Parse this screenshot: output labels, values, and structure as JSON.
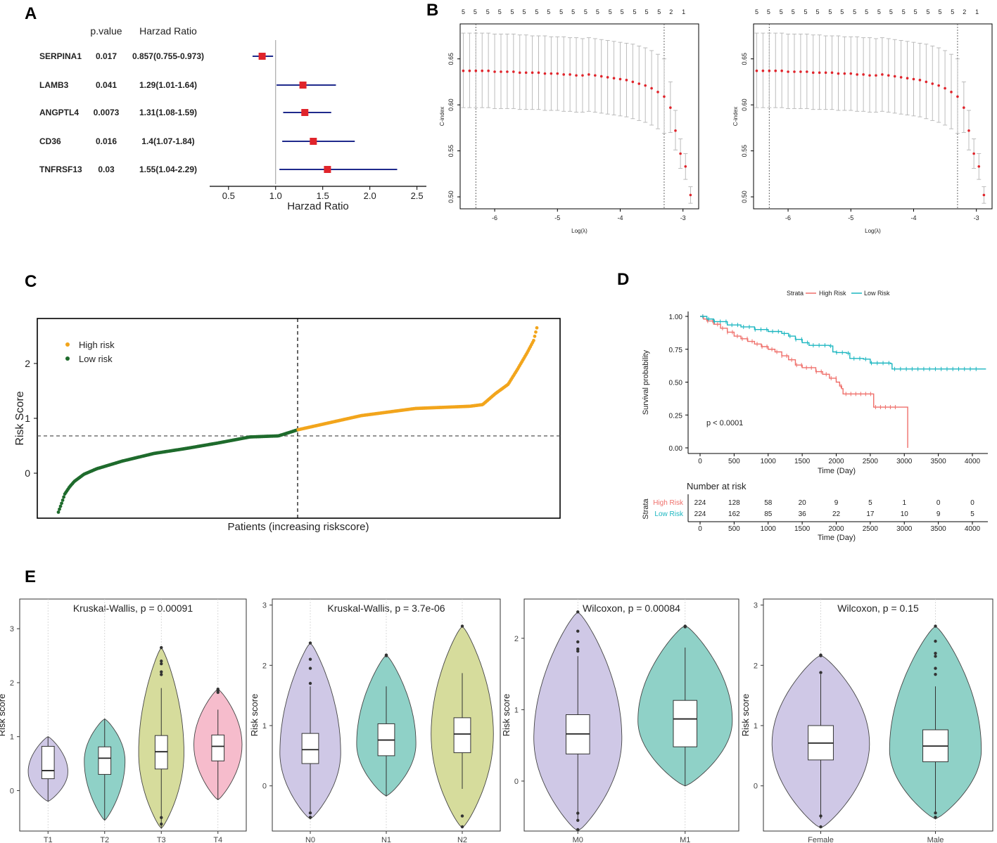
{
  "panel_labels": [
    "A",
    "B",
    "C",
    "D",
    "E"
  ],
  "colors": {
    "forest_line": "#1f2a8c",
    "forest_point": "#e0242b",
    "cindex_point": "#e0242b",
    "cindex_bar": "#b5b5b5",
    "high": "#f2a51c",
    "low": "#1e6b2c",
    "km_high": "#ef6f6a",
    "km_low": "#1bb6c0",
    "violin": [
      "#cfc8e6",
      "#8fd1c7",
      "#d6dc9c",
      "#f6bccc"
    ]
  },
  "chart_data": [
    {
      "id": "A",
      "type": "forest",
      "headers": {
        "pvalue": "p.value",
        "hr": "Harzad Ratio"
      },
      "rows": [
        {
          "gene": "SERPINA1",
          "pvalue": "0.017",
          "hr_text": "0.857(0.755-0.973)",
          "hr": 0.857,
          "lo": 0.755,
          "hi": 0.973
        },
        {
          "gene": "LAMB3",
          "pvalue": "0.041",
          "hr_text": "1.29(1.01-1.64)",
          "hr": 1.29,
          "lo": 1.01,
          "hi": 1.64
        },
        {
          "gene": "ANGPTL4",
          "pvalue": "0.0073",
          "hr_text": "1.31(1.08-1.59)",
          "hr": 1.31,
          "lo": 1.08,
          "hi": 1.59
        },
        {
          "gene": "CD36",
          "pvalue": "0.016",
          "hr_text": "1.4(1.07-1.84)",
          "hr": 1.4,
          "lo": 1.07,
          "hi": 1.84
        },
        {
          "gene": "TNFRSF13",
          "pvalue": "0.03",
          "hr_text": "1.55(1.04-2.29)",
          "hr": 1.55,
          "lo": 1.04,
          "hi": 2.29
        }
      ],
      "xlim": [
        0.3,
        2.6
      ],
      "ticks": [
        0.5,
        1.0,
        1.5,
        2.0,
        2.5
      ],
      "tick_labels": [
        "0.5",
        "1.0",
        "1.5",
        "2.0",
        "2.5"
      ],
      "ref": 1.0,
      "xlabel": "Harzad Ratio"
    },
    {
      "id": "B",
      "type": "errorbar-cindex",
      "xlabel": "Log(λ)",
      "ylabel": "C-index",
      "xlim": [
        -6.55,
        -2.75
      ],
      "ylim": [
        0.487,
        0.688
      ],
      "xticks": [
        -6,
        -5,
        -4,
        -3
      ],
      "xtick_labels": [
        "-6",
        "-5",
        "-4",
        "-3"
      ],
      "yticks": [
        0.5,
        0.55,
        0.6,
        0.65
      ],
      "ytick_labels": [
        "0.50",
        "0.55",
        "0.60",
        "0.65"
      ],
      "vlines": [
        -6.3,
        -3.3
      ],
      "top_labels": [
        "5",
        "5",
        "5",
        "5",
        "5",
        "5",
        "5",
        "5",
        "5",
        "5",
        "5",
        "5",
        "5",
        "5",
        "5",
        "5",
        "5",
        "2",
        "1"
      ],
      "top_label_x": [
        -6.5,
        -6.31,
        -6.11,
        -5.92,
        -5.72,
        -5.53,
        -5.33,
        -5.14,
        -4.94,
        -4.75,
        -4.55,
        -4.36,
        -4.16,
        -3.97,
        -3.77,
        -3.58,
        -3.38,
        -3.19,
        -2.99
      ],
      "points": [
        {
          "x": -6.5,
          "y": 0.637,
          "lo": 0.597,
          "hi": 0.678
        },
        {
          "x": -6.4,
          "y": 0.637,
          "lo": 0.597,
          "hi": 0.678
        },
        {
          "x": -6.3,
          "y": 0.637,
          "lo": 0.597,
          "hi": 0.678
        },
        {
          "x": -6.2,
          "y": 0.637,
          "lo": 0.597,
          "hi": 0.678
        },
        {
          "x": -6.1,
          "y": 0.637,
          "lo": 0.597,
          "hi": 0.678
        },
        {
          "x": -6.0,
          "y": 0.636,
          "lo": 0.596,
          "hi": 0.677
        },
        {
          "x": -5.9,
          "y": 0.636,
          "lo": 0.596,
          "hi": 0.677
        },
        {
          "x": -5.8,
          "y": 0.636,
          "lo": 0.596,
          "hi": 0.677
        },
        {
          "x": -5.7,
          "y": 0.636,
          "lo": 0.596,
          "hi": 0.677
        },
        {
          "x": -5.6,
          "y": 0.635,
          "lo": 0.595,
          "hi": 0.676
        },
        {
          "x": -5.5,
          "y": 0.635,
          "lo": 0.595,
          "hi": 0.676
        },
        {
          "x": -5.4,
          "y": 0.635,
          "lo": 0.595,
          "hi": 0.675
        },
        {
          "x": -5.3,
          "y": 0.635,
          "lo": 0.595,
          "hi": 0.675
        },
        {
          "x": -5.2,
          "y": 0.634,
          "lo": 0.594,
          "hi": 0.675
        },
        {
          "x": -5.1,
          "y": 0.634,
          "lo": 0.594,
          "hi": 0.674
        },
        {
          "x": -5.0,
          "y": 0.634,
          "lo": 0.594,
          "hi": 0.674
        },
        {
          "x": -4.9,
          "y": 0.633,
          "lo": 0.593,
          "hi": 0.674
        },
        {
          "x": -4.8,
          "y": 0.633,
          "lo": 0.593,
          "hi": 0.673
        },
        {
          "x": -4.7,
          "y": 0.632,
          "lo": 0.592,
          "hi": 0.673
        },
        {
          "x": -4.6,
          "y": 0.632,
          "lo": 0.592,
          "hi": 0.672
        },
        {
          "x": -4.5,
          "y": 0.633,
          "lo": 0.593,
          "hi": 0.673
        },
        {
          "x": -4.4,
          "y": 0.632,
          "lo": 0.592,
          "hi": 0.672
        },
        {
          "x": -4.3,
          "y": 0.631,
          "lo": 0.591,
          "hi": 0.671
        },
        {
          "x": -4.2,
          "y": 0.63,
          "lo": 0.59,
          "hi": 0.67
        },
        {
          "x": -4.1,
          "y": 0.629,
          "lo": 0.589,
          "hi": 0.669
        },
        {
          "x": -4.0,
          "y": 0.628,
          "lo": 0.588,
          "hi": 0.668
        },
        {
          "x": -3.9,
          "y": 0.627,
          "lo": 0.587,
          "hi": 0.667
        },
        {
          "x": -3.8,
          "y": 0.625,
          "lo": 0.585,
          "hi": 0.666
        },
        {
          "x": -3.7,
          "y": 0.623,
          "lo": 0.583,
          "hi": 0.664
        },
        {
          "x": -3.6,
          "y": 0.621,
          "lo": 0.581,
          "hi": 0.662
        },
        {
          "x": -3.5,
          "y": 0.618,
          "lo": 0.578,
          "hi": 0.659
        },
        {
          "x": -3.4,
          "y": 0.614,
          "lo": 0.574,
          "hi": 0.655
        },
        {
          "x": -3.3,
          "y": 0.609,
          "lo": 0.569,
          "hi": 0.65
        },
        {
          "x": -3.2,
          "y": 0.597,
          "lo": 0.57,
          "hi": 0.625
        },
        {
          "x": -3.12,
          "y": 0.572,
          "lo": 0.551,
          "hi": 0.594
        },
        {
          "x": -3.04,
          "y": 0.547,
          "lo": 0.531,
          "hi": 0.563
        },
        {
          "x": -2.96,
          "y": 0.533,
          "lo": 0.519,
          "hi": 0.547
        },
        {
          "x": -2.88,
          "y": 0.502,
          "lo": 0.493,
          "hi": 0.511
        }
      ]
    },
    {
      "id": "C",
      "type": "scatter",
      "xlabel": "Patients (increasing riskscore)",
      "ylabel": "Risk Score",
      "yticks": [
        0,
        1,
        2
      ],
      "ytick_labels": [
        "0",
        "1",
        "2"
      ],
      "ylim": [
        -0.82,
        2.82
      ],
      "cutoff": 0.68,
      "n": 448,
      "split_index": 224,
      "legend": [
        "High risk",
        "Low risk"
      ],
      "quantiles": [
        {
          "q": 0.0,
          "v": -0.71
        },
        {
          "q": 0.01,
          "v": -0.55
        },
        {
          "q": 0.02,
          "v": -0.38
        },
        {
          "q": 0.035,
          "v": -0.25
        },
        {
          "q": 0.05,
          "v": -0.15
        },
        {
          "q": 0.08,
          "v": -0.02
        },
        {
          "q": 0.12,
          "v": 0.08
        },
        {
          "q": 0.2,
          "v": 0.22
        },
        {
          "q": 0.3,
          "v": 0.36
        },
        {
          "q": 0.4,
          "v": 0.45
        },
        {
          "q": 0.5,
          "v": 0.55
        },
        {
          "q": 0.6,
          "v": 0.66
        },
        {
          "q": 0.69,
          "v": 0.68
        },
        {
          "q": 0.75,
          "v": 0.79
        },
        {
          "q": 0.85,
          "v": 0.92
        },
        {
          "q": 0.95,
          "v": 1.05
        },
        {
          "q": 1.12,
          "v": 1.18
        },
        {
          "q": 1.29,
          "v": 1.22
        },
        {
          "q": 1.33,
          "v": 1.25
        },
        {
          "q": 1.37,
          "v": 1.45
        },
        {
          "q": 1.41,
          "v": 1.62
        },
        {
          "q": 1.44,
          "v": 1.9
        },
        {
          "q": 1.47,
          "v": 2.2
        },
        {
          "q": 1.49,
          "v": 2.42
        },
        {
          "q": 1.5,
          "v": 2.65
        }
      ]
    },
    {
      "id": "D",
      "type": "km",
      "legend_title": "Strata",
      "legend": [
        "High Risk",
        "Low Risk"
      ],
      "xlabel": "Time (Day)",
      "ylabel": "Survival probability",
      "xlim": [
        -150,
        4200
      ],
      "ylim": [
        -0.05,
        1.05
      ],
      "xticks": [
        0,
        500,
        1000,
        1500,
        2000,
        2500,
        3000,
        3500,
        4000
      ],
      "xtick_labels": [
        "0",
        "500",
        "1000",
        "1500",
        "2000",
        "2500",
        "3000",
        "3500",
        "4000"
      ],
      "yticks": [
        0,
        0.25,
        0.5,
        0.75,
        1.0
      ],
      "ytick_labels": [
        "0.00",
        "0.25",
        "0.50",
        "0.75",
        "1.00"
      ],
      "pvalue": "p < 0.0001",
      "series": [
        {
          "name": "High Risk",
          "steps": [
            [
              0,
              1.0
            ],
            [
              50,
              0.98
            ],
            [
              100,
              0.965
            ],
            [
              200,
              0.94
            ],
            [
              300,
              0.91
            ],
            [
              400,
              0.88
            ],
            [
              500,
              0.85
            ],
            [
              600,
              0.83
            ],
            [
              700,
              0.81
            ],
            [
              800,
              0.79
            ],
            [
              900,
              0.77
            ],
            [
              1000,
              0.75
            ],
            [
              1100,
              0.73
            ],
            [
              1200,
              0.7
            ],
            [
              1300,
              0.67
            ],
            [
              1400,
              0.63
            ],
            [
              1500,
              0.61
            ],
            [
              1700,
              0.58
            ],
            [
              1800,
              0.56
            ],
            [
              1900,
              0.53
            ],
            [
              2000,
              0.5
            ],
            [
              2050,
              0.47
            ],
            [
              2080,
              0.45
            ],
            [
              2100,
              0.41
            ],
            [
              2550,
              0.31
            ],
            [
              3050,
              0.0
            ]
          ]
        },
        {
          "name": "Low Risk",
          "steps": [
            [
              0,
              1.0
            ],
            [
              100,
              0.98
            ],
            [
              200,
              0.96
            ],
            [
              400,
              0.935
            ],
            [
              600,
              0.92
            ],
            [
              800,
              0.9
            ],
            [
              1000,
              0.885
            ],
            [
              1200,
              0.87
            ],
            [
              1300,
              0.85
            ],
            [
              1400,
              0.825
            ],
            [
              1500,
              0.8
            ],
            [
              1600,
              0.78
            ],
            [
              1900,
              0.775
            ],
            [
              1950,
              0.73
            ],
            [
              2000,
              0.725
            ],
            [
              2150,
              0.72
            ],
            [
              2200,
              0.68
            ],
            [
              2400,
              0.675
            ],
            [
              2500,
              0.645
            ],
            [
              2800,
              0.64
            ],
            [
              2820,
              0.6
            ],
            [
              4200,
              0.6
            ]
          ]
        }
      ],
      "risk_table": {
        "title": "Number at risk",
        "ylabel": "Strata",
        "rows": [
          {
            "name": "High Risk",
            "values": [
              "224",
              "128",
              "58",
              "20",
              "9",
              "5",
              "1",
              "0",
              "0"
            ]
          },
          {
            "name": "Low Risk",
            "values": [
              "224",
              "162",
              "85",
              "36",
              "22",
              "17",
              "10",
              "9",
              "5"
            ]
          }
        ],
        "xlabel": "Time (Day)"
      }
    },
    {
      "id": "E1",
      "type": "violin",
      "title": "Kruskal-Wallis, p = 0.00091",
      "ylabel": "Risk score",
      "ylim": [
        -0.75,
        3.55
      ],
      "yticks": [
        0,
        1,
        2,
        3
      ],
      "ytick_labels": [
        "0",
        "1",
        "2",
        "3"
      ],
      "groups": [
        {
          "name": "T1",
          "min": -0.2,
          "max": 1.0,
          "q1": 0.22,
          "med": 0.37,
          "q3": 0.82,
          "wlo": -0.2,
          "whi": 1.0,
          "mode": 0.35,
          "maxw": 0.7,
          "outliers": []
        },
        {
          "name": "T2",
          "min": -0.55,
          "max": 1.33,
          "q1": 0.3,
          "med": 0.6,
          "q3": 0.81,
          "wlo": -0.55,
          "whi": 1.33,
          "mode": 0.55,
          "maxw": 0.72,
          "outliers": []
        },
        {
          "name": "T3",
          "min": -0.7,
          "max": 2.65,
          "q1": 0.4,
          "med": 0.72,
          "q3": 1.02,
          "wlo": -0.7,
          "whi": 1.9,
          "mode": 0.7,
          "maxw": 0.8,
          "outliers": [
            2.65,
            2.4,
            2.35,
            2.2,
            2.15,
            -0.62,
            -0.5
          ]
        },
        {
          "name": "T4",
          "min": -0.17,
          "max": 1.88,
          "q1": 0.55,
          "med": 0.82,
          "q3": 1.03,
          "wlo": -0.17,
          "whi": 1.5,
          "mode": 0.85,
          "maxw": 0.85,
          "outliers": [
            1.88,
            1.85,
            1.82
          ]
        }
      ]
    },
    {
      "id": "E2",
      "type": "violin",
      "title": "Kruskal-Wallis, p = 3.7e-06",
      "ylabel": "Risk score",
      "ylim": [
        -0.75,
        3.1
      ],
      "yticks": [
        0,
        1,
        2,
        3
      ],
      "ytick_labels": [
        "0",
        "1",
        "2",
        "3"
      ],
      "groups": [
        {
          "name": "N0",
          "min": -0.55,
          "max": 2.37,
          "q1": 0.37,
          "med": 0.6,
          "q3": 0.87,
          "wlo": -0.45,
          "whi": 1.65,
          "mode": 0.55,
          "maxw": 0.8,
          "outliers": [
            2.37,
            2.1,
            1.95,
            1.7,
            -0.45,
            -0.52
          ]
        },
        {
          "name": "N1",
          "min": -0.17,
          "max": 2.17,
          "q1": 0.5,
          "med": 0.76,
          "q3": 1.03,
          "wlo": -0.17,
          "whi": 1.65,
          "mode": 0.7,
          "maxw": 0.78,
          "outliers": [
            2.17,
            2.16
          ]
        },
        {
          "name": "N2",
          "min": -0.7,
          "max": 2.65,
          "q1": 0.55,
          "med": 0.86,
          "q3": 1.13,
          "wlo": -0.05,
          "whi": 1.87,
          "mode": 0.85,
          "maxw": 0.82,
          "outliers": [
            2.65,
            -0.5,
            -0.68
          ]
        }
      ]
    },
    {
      "id": "E3",
      "type": "violin",
      "title": "Wilcoxon, p = 0.00084",
      "ylabel": "Risk score",
      "ylim": [
        -0.7,
        2.55
      ],
      "yticks": [
        0,
        1,
        2
      ],
      "ytick_labels": [
        "0",
        "1",
        "2"
      ],
      "groups": [
        {
          "name": "M0",
          "min": -0.7,
          "max": 2.37,
          "q1": 0.38,
          "med": 0.66,
          "q3": 0.93,
          "wlo": -0.55,
          "whi": 1.75,
          "mode": 0.6,
          "maxw": 0.82,
          "outliers": [
            2.37,
            2.1,
            1.95,
            1.85,
            1.82,
            -0.45,
            -0.55,
            -0.68
          ]
        },
        {
          "name": "M1",
          "min": -0.07,
          "max": 2.18,
          "q1": 0.48,
          "med": 0.87,
          "q3": 1.13,
          "wlo": -0.07,
          "whi": 1.87,
          "mode": 0.85,
          "maxw": 0.88,
          "outliers": [
            2.17,
            2.16
          ]
        }
      ]
    },
    {
      "id": "E4",
      "type": "violin",
      "title": "Wilcoxon, p = 0.15",
      "ylabel": "Risk score",
      "ylim": [
        -0.75,
        3.1
      ],
      "yticks": [
        0,
        1,
        2,
        3
      ],
      "ytick_labels": [
        "0",
        "1",
        "2",
        "3"
      ],
      "groups": [
        {
          "name": "Female",
          "min": -0.7,
          "max": 2.17,
          "q1": 0.43,
          "med": 0.71,
          "q3": 1.0,
          "wlo": -0.55,
          "whi": 1.85,
          "mode": 0.7,
          "maxw": 0.85,
          "outliers": [
            2.17,
            2.16,
            1.88,
            -0.5,
            -0.68
          ]
        },
        {
          "name": "Male",
          "min": -0.55,
          "max": 2.65,
          "q1": 0.4,
          "med": 0.66,
          "q3": 0.93,
          "wlo": -0.45,
          "whi": 1.65,
          "mode": 0.6,
          "maxw": 0.8,
          "outliers": [
            2.65,
            2.4,
            2.2,
            2.15,
            1.95,
            1.85,
            -0.45,
            -0.52
          ]
        }
      ]
    }
  ]
}
